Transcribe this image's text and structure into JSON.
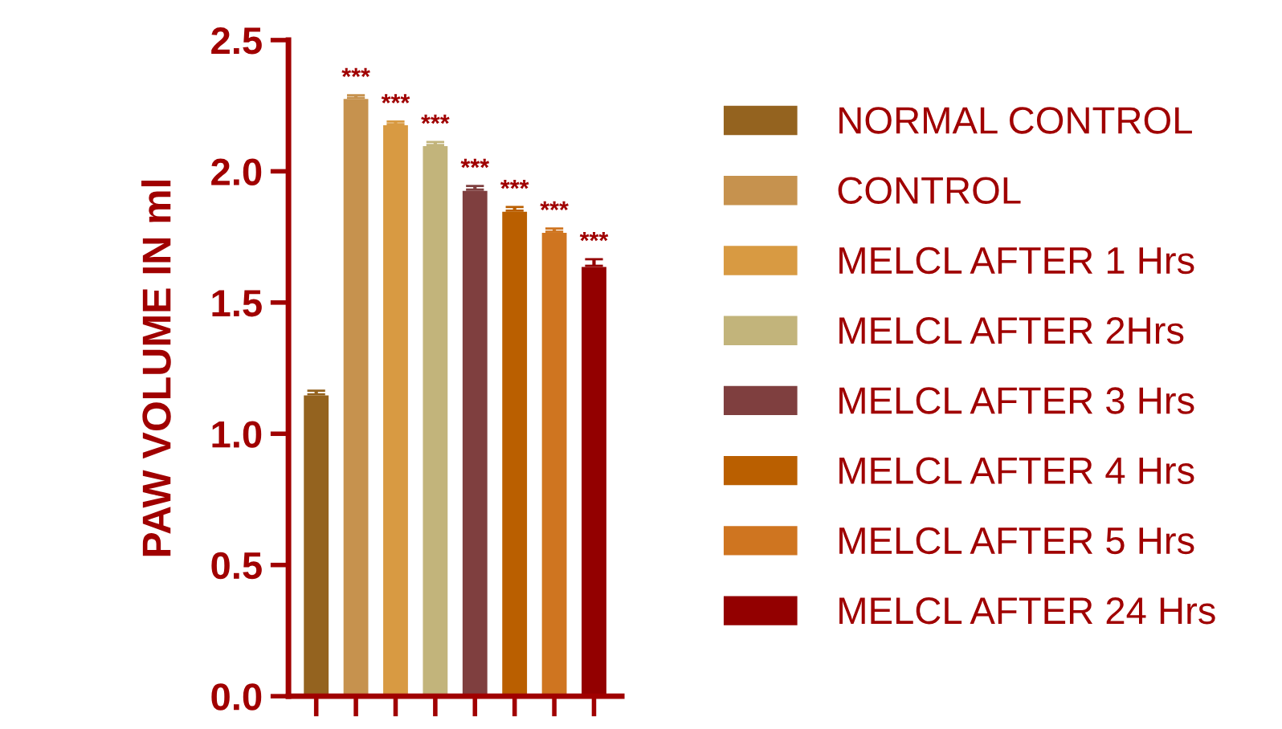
{
  "chart_data": {
    "type": "bar",
    "ylabel": "PAW VOLUME IN ml",
    "categories": [
      null,
      null,
      null,
      null,
      null,
      null,
      null,
      null
    ],
    "series": [
      {
        "name": "NORMAL CONTROL",
        "color": "#94631f",
        "values": [
          1.15,
          null,
          null,
          null,
          null,
          null,
          null,
          null
        ],
        "errors": [
          0.014,
          null,
          null,
          null,
          null,
          null,
          null,
          null
        ]
      },
      {
        "name": "CONTROL",
        "color": "#c6924e",
        "values": [
          null,
          2.28,
          null,
          null,
          null,
          null,
          null,
          null
        ],
        "errors": [
          null,
          0.01,
          null,
          null,
          null,
          null,
          null,
          null
        ],
        "value_labels": [
          null,
          "***",
          null,
          null,
          null,
          null,
          null,
          null
        ]
      },
      {
        "name": "MELCL AFTER 1 Hrs",
        "color": "#d89a42",
        "values": [
          null,
          null,
          2.18,
          null,
          null,
          null,
          null,
          null
        ],
        "errors": [
          null,
          null,
          0.01,
          null,
          null,
          null,
          null,
          null
        ],
        "value_labels": [
          null,
          null,
          "***",
          null,
          null,
          null,
          null,
          null
        ]
      },
      {
        "name": "MELCL AFTER 2Hrs",
        "color": "#c2b47b",
        "values": [
          null,
          null,
          null,
          2.1,
          null,
          null,
          null,
          null
        ],
        "errors": [
          null,
          null,
          null,
          0.012,
          null,
          null,
          null,
          null
        ],
        "value_labels": [
          null,
          null,
          null,
          "***",
          null,
          null,
          null,
          null
        ]
      },
      {
        "name": "MELCL AFTER 3 Hrs",
        "color": "#7f3f3f",
        "values": [
          null,
          null,
          null,
          null,
          1.93,
          null,
          null,
          null
        ],
        "errors": [
          null,
          null,
          null,
          null,
          0.014,
          null,
          null,
          null
        ],
        "value_labels": [
          null,
          null,
          null,
          null,
          "***",
          null,
          null,
          null
        ]
      },
      {
        "name": "MELCL AFTER 4 Hrs",
        "color": "#ba5f00",
        "values": [
          null,
          null,
          null,
          null,
          null,
          1.85,
          null,
          null
        ],
        "errors": [
          null,
          null,
          null,
          null,
          null,
          0.014,
          null,
          null
        ],
        "value_labels": [
          null,
          null,
          null,
          null,
          null,
          "***",
          null,
          null
        ]
      },
      {
        "name": "MELCL AFTER 5 Hrs",
        "color": "#cf7520",
        "values": [
          null,
          null,
          null,
          null,
          null,
          null,
          1.77,
          null
        ],
        "errors": [
          null,
          null,
          null,
          null,
          null,
          null,
          0.012,
          null
        ],
        "value_labels": [
          null,
          null,
          null,
          null,
          null,
          null,
          "***",
          null
        ]
      },
      {
        "name": "MELCL AFTER 24 Hrs",
        "color": "#930000",
        "values": [
          null,
          null,
          null,
          null,
          null,
          null,
          null,
          1.64
        ],
        "errors": [
          null,
          null,
          null,
          null,
          null,
          null,
          null,
          0.025
        ],
        "value_labels": [
          null,
          null,
          null,
          null,
          null,
          null,
          null,
          "***"
        ]
      }
    ],
    "ylim": [
      0,
      2.5
    ],
    "yticks": [
      {
        "value": 0,
        "label": "0.0"
      },
      {
        "value": 0.5,
        "label": "0.5"
      },
      {
        "value": 1.0,
        "label": "1.0"
      },
      {
        "value": 1.5,
        "label": "1.5"
      },
      {
        "value": 2.0,
        "label": "2.0"
      },
      {
        "value": 2.5,
        "label": "2.5"
      }
    ],
    "tick_labels": "y",
    "legend": "right",
    "grid": false
  }
}
